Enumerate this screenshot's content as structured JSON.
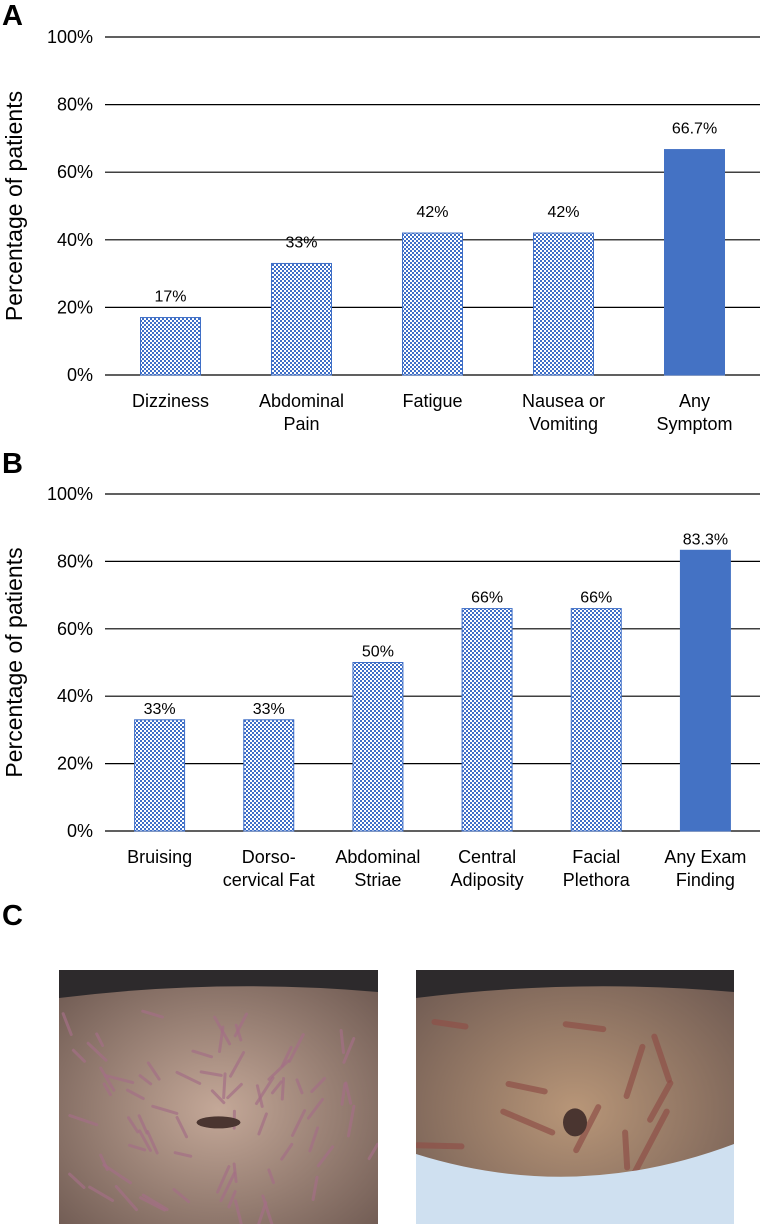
{
  "panels": {
    "a": "A",
    "b": "B",
    "c": "C"
  },
  "colors": {
    "highlight": "#4472C4",
    "pattern": "#3F6FC7",
    "grid": "#000000"
  },
  "chart_data": [
    {
      "type": "bar",
      "panel": "A",
      "categories": [
        [
          "Dizziness"
        ],
        [
          "Abdominal",
          "Pain"
        ],
        [
          "Fatigue"
        ],
        [
          "Nausea or",
          "Vomiting"
        ],
        [
          "Any",
          "Symptom"
        ]
      ],
      "values": [
        17,
        33,
        42,
        42,
        66.7
      ],
      "data_labels": [
        "17%",
        "33%",
        "42%",
        "42%",
        "66.7%"
      ],
      "highlighted": [
        false,
        false,
        false,
        false,
        true
      ],
      "ylabel": "Percentage of patients",
      "ylim": [
        0,
        100
      ],
      "yticks": [
        "0%",
        "20%",
        "40%",
        "60%",
        "80%",
        "100%"
      ],
      "grid": true
    },
    {
      "type": "bar",
      "panel": "B",
      "categories": [
        [
          "Bruising"
        ],
        [
          "Dorso-",
          "cervical Fat"
        ],
        [
          "Abdominal",
          "Striae"
        ],
        [
          "Central",
          "Adiposity"
        ],
        [
          "Facial",
          "Plethora"
        ],
        [
          "Any Exam",
          "Finding"
        ]
      ],
      "values": [
        33,
        33,
        50,
        66,
        66,
        83.3
      ],
      "data_labels": [
        "33%",
        "33%",
        "50%",
        "66%",
        "66%",
        "83.3%"
      ],
      "highlighted": [
        false,
        false,
        false,
        false,
        false,
        true
      ],
      "ylabel": "Percentage of patients",
      "ylim": [
        0,
        100
      ],
      "yticks": [
        "0%",
        "20%",
        "40%",
        "60%",
        "80%",
        "100%"
      ],
      "grid": true
    }
  ],
  "photos": [
    {
      "name": "abdominal-striae-photo-1",
      "tone": "#c4a898",
      "striae": "#a46f86"
    },
    {
      "name": "abdominal-striae-photo-2",
      "tone": "#b89678",
      "striae": "#8f5048"
    }
  ]
}
